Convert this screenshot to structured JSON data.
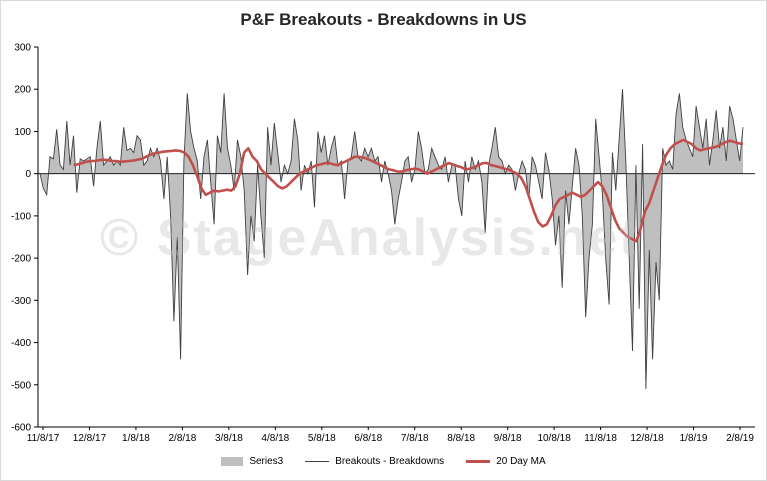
{
  "chart_data": {
    "type": "line",
    "title": "P&F Breakouts - Breakdowns in US",
    "watermark": "© StageAnalysis.net",
    "ylim": [
      -600,
      300
    ],
    "y_ticks": [
      "300",
      "200",
      "100",
      "0",
      "-100",
      "-200",
      "-300",
      "-400",
      "-500",
      "-600"
    ],
    "x_ticks": [
      "11/8/17",
      "12/8/17",
      "1/8/18",
      "2/8/18",
      "3/8/18",
      "4/8/18",
      "5/8/18",
      "6/8/18",
      "7/8/18",
      "8/8/18",
      "9/8/18",
      "10/8/18",
      "11/8/18",
      "12/8/18",
      "1/8/19",
      "2/8/19"
    ],
    "legend": [
      "Series3",
      "Breakouts - Breakdowns",
      "20 Day MA"
    ],
    "colors": {
      "area": "#bfbfbf",
      "line": "#404040",
      "ma": "#c0504d"
    },
    "series": [
      {
        "name": "Breakouts - Breakdowns",
        "values": [
          0,
          -35,
          -50,
          40,
          35,
          105,
          20,
          10,
          125,
          20,
          90,
          -45,
          35,
          30,
          35,
          40,
          -30,
          60,
          125,
          20,
          30,
          40,
          20,
          30,
          20,
          110,
          55,
          60,
          50,
          90,
          80,
          20,
          30,
          60,
          40,
          60,
          30,
          -60,
          40,
          -100,
          -350,
          -150,
          -440,
          30,
          190,
          100,
          60,
          30,
          -60,
          40,
          80,
          -20,
          -120,
          90,
          50,
          190,
          60,
          20,
          -40,
          80,
          40,
          -40,
          -240,
          -100,
          -160,
          20,
          -100,
          -200,
          110,
          20,
          120,
          50,
          -20,
          20,
          0,
          30,
          130,
          80,
          -40,
          20,
          0,
          30,
          -80,
          100,
          50,
          90,
          20,
          60,
          90,
          20,
          30,
          -60,
          30,
          40,
          100,
          40,
          30,
          60,
          40,
          60,
          30,
          40,
          -20,
          30,
          0,
          -40,
          -120,
          -60,
          -20,
          30,
          40,
          -20,
          10,
          100,
          60,
          0,
          10,
          60,
          40,
          20,
          10,
          40,
          -20,
          20,
          20,
          -60,
          -100,
          30,
          -20,
          40,
          10,
          30,
          -20,
          -140,
          20,
          60,
          110,
          40,
          30,
          0,
          20,
          10,
          -40,
          0,
          30,
          10,
          -60,
          40,
          20,
          -20,
          -60,
          50,
          10,
          -60,
          -170,
          -100,
          -270,
          -40,
          -120,
          -30,
          60,
          20,
          -100,
          -340,
          -200,
          -120,
          130,
          40,
          -50,
          -200,
          -310,
          50,
          -40,
          80,
          200,
          30,
          -200,
          -420,
          20,
          -320,
          70,
          -510,
          -180,
          -440,
          -210,
          -300,
          60,
          20,
          30,
          10,
          140,
          190,
          110,
          80,
          60,
          40,
          160,
          110,
          60,
          130,
          20,
          80,
          150,
          60,
          110,
          30,
          160,
          130,
          80,
          30,
          110
        ]
      },
      {
        "name": "20 Day MA",
        "values": [
          20,
          22,
          25,
          28,
          30,
          30,
          32,
          33,
          32,
          30,
          30,
          28,
          29,
          30,
          31,
          33,
          35,
          40,
          45,
          48,
          50,
          52,
          53,
          54,
          55,
          54,
          50,
          40,
          20,
          -5,
          -35,
          -50,
          -45,
          -40,
          -42,
          -40,
          -38,
          -40,
          -30,
          0,
          50,
          60,
          40,
          30,
          10,
          0,
          -10,
          -20,
          -30,
          -35,
          -30,
          -20,
          -10,
          0,
          5,
          10,
          15,
          20,
          22,
          25,
          25,
          22,
          20,
          25,
          30,
          35,
          40,
          40,
          38,
          35,
          30,
          25,
          20,
          15,
          10,
          8,
          5,
          5,
          8,
          10,
          12,
          10,
          5,
          0,
          5,
          10,
          15,
          20,
          25,
          22,
          18,
          15,
          10,
          12,
          15,
          20,
          25,
          25,
          20,
          18,
          15,
          12,
          10,
          5,
          0,
          -10,
          -30,
          -60,
          -90,
          -115,
          -125,
          -120,
          -100,
          -75,
          -60,
          -55,
          -50,
          -45,
          -50,
          -55,
          -50,
          -40,
          -30,
          -20,
          -30,
          -50,
          -80,
          -110,
          -130,
          -140,
          -150,
          -155,
          -160,
          -130,
          -90,
          -70,
          -40,
          -10,
          20,
          45,
          60,
          70,
          75,
          80,
          75,
          70,
          60,
          55,
          58,
          60,
          62,
          65,
          70,
          75,
          78,
          75,
          72,
          70
        ]
      }
    ]
  }
}
